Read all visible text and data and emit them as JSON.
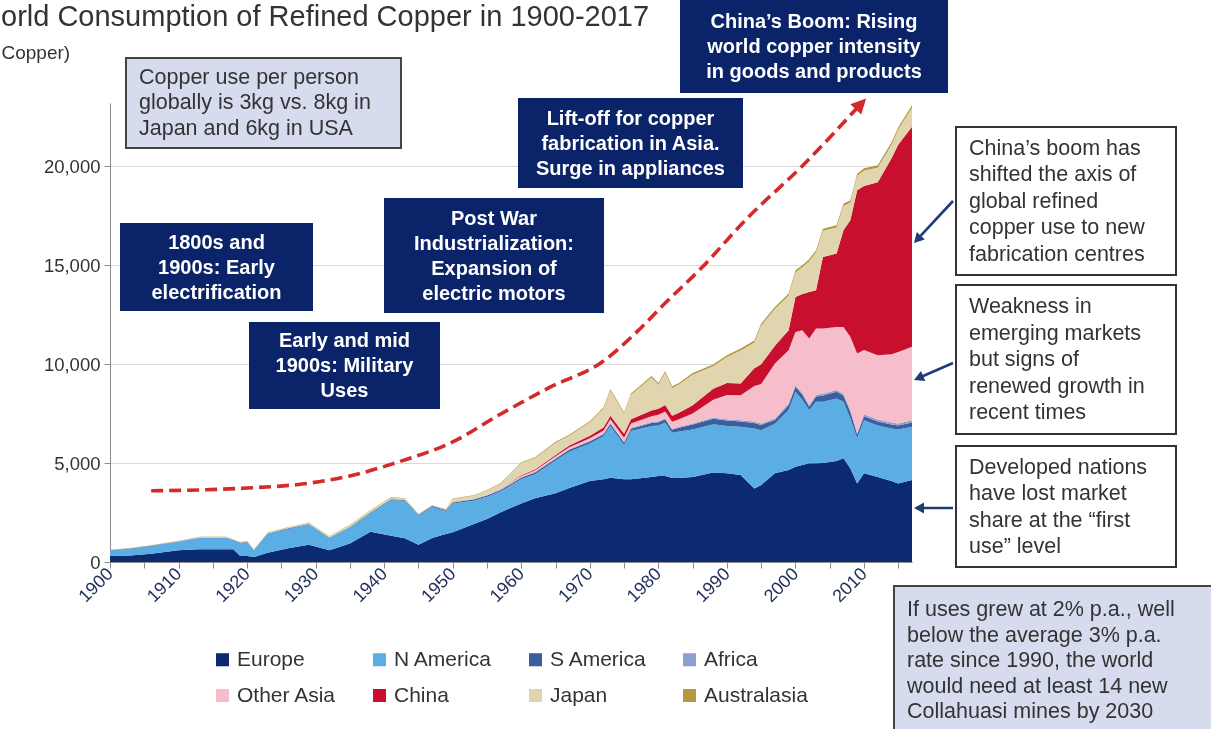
{
  "chart_data": {
    "type": "area",
    "stacked": true,
    "title": "orld Consumption of Refined Copper in 1900-2017",
    "ylabel": "Copper)",
    "x": [
      1900,
      1903,
      1906,
      1910,
      1913,
      1917,
      1918,
      1919,
      1920,
      1921,
      1923,
      1926,
      1929,
      1932,
      1935,
      1938,
      1941,
      1943,
      1945,
      1947,
      1949,
      1950,
      1953,
      1955,
      1957,
      1960,
      1962,
      1965,
      1967,
      1970,
      1972,
      1973,
      1975,
      1976,
      1979,
      1980,
      1981,
      1982,
      1983,
      1985,
      1988,
      1990,
      1992,
      1994,
      1995,
      1997,
      1999,
      2000,
      2001,
      2002,
      2003,
      2004,
      2006,
      2007,
      2008,
      2009,
      2010,
      2012,
      2014,
      2015,
      2017
    ],
    "series": [
      {
        "name": "Europe",
        "color": "#0b2a6f",
        "values": [
          300,
          330,
          420,
          600,
          650,
          650,
          650,
          300,
          300,
          250,
          470,
          690,
          870,
          600,
          940,
          1530,
          1330,
          1200,
          870,
          1210,
          1420,
          1500,
          1910,
          2170,
          2520,
          2960,
          3220,
          3480,
          3740,
          4090,
          4180,
          4260,
          4180,
          4180,
          4300,
          4350,
          4350,
          4250,
          4250,
          4300,
          4520,
          4480,
          4400,
          3720,
          3890,
          4480,
          4650,
          4820,
          4900,
          4990,
          4990,
          5000,
          5100,
          5240,
          4740,
          3970,
          4480,
          4300,
          4100,
          3970,
          4140
        ]
      },
      {
        "name": "N America",
        "color": "#5aaee3",
        "values": [
          270,
          330,
          380,
          420,
          560,
          560,
          440,
          650,
          700,
          330,
          950,
          980,
          1020,
          600,
          800,
          930,
          1800,
          1900,
          1480,
          1570,
          1160,
          1460,
          1190,
          1130,
          1050,
          1220,
          1220,
          1650,
          1830,
          1900,
          2170,
          2610,
          1740,
          2440,
          2570,
          2550,
          2700,
          2280,
          2350,
          2400,
          2440,
          2390,
          2430,
          3030,
          2770,
          2510,
          3030,
          3780,
          3300,
          2690,
          3110,
          3100,
          3170,
          2860,
          2520,
          2280,
          2690,
          2600,
          2650,
          2730,
          2690
        ]
      },
      {
        "name": "S America",
        "color": "#3a5f9d",
        "values": [
          20,
          20,
          20,
          20,
          20,
          20,
          20,
          20,
          20,
          20,
          20,
          30,
          30,
          30,
          30,
          40,
          40,
          40,
          40,
          50,
          50,
          50,
          60,
          60,
          70,
          80,
          80,
          90,
          100,
          100,
          110,
          120,
          120,
          120,
          150,
          160,
          160,
          160,
          180,
          250,
          280,
          280,
          270,
          280,
          270,
          190,
          250,
          260,
          270,
          170,
          270,
          320,
          340,
          320,
          340,
          200,
          200,
          200,
          200,
          200,
          220
        ]
      },
      {
        "name": "Africa",
        "color": "#8c9fd0",
        "values": [
          10,
          10,
          10,
          10,
          10,
          10,
          10,
          10,
          10,
          10,
          10,
          10,
          10,
          10,
          10,
          10,
          10,
          10,
          10,
          10,
          10,
          20,
          20,
          20,
          20,
          30,
          30,
          30,
          30,
          40,
          40,
          40,
          40,
          40,
          50,
          50,
          50,
          50,
          50,
          50,
          60,
          70,
          70,
          70,
          70,
          70,
          80,
          80,
          80,
          80,
          80,
          80,
          80,
          80,
          100,
          100,
          100,
          100,
          100,
          100,
          120
        ]
      },
      {
        "name": "Other Asia",
        "color": "#f6bdcb",
        "values": [
          0,
          0,
          0,
          0,
          0,
          0,
          0,
          0,
          0,
          0,
          0,
          0,
          0,
          0,
          0,
          0,
          0,
          0,
          0,
          0,
          0,
          0,
          10,
          20,
          30,
          60,
          70,
          90,
          100,
          120,
          150,
          180,
          200,
          220,
          300,
          330,
          350,
          350,
          380,
          500,
          900,
          1220,
          1260,
          1790,
          2000,
          2780,
          2690,
          2690,
          3170,
          3370,
          3350,
          3300,
          3190,
          3380,
          3680,
          3990,
          3240,
          3250,
          3450,
          3620,
          3710
        ]
      },
      {
        "name": "China",
        "color": "#c8102e",
        "values": [
          0,
          0,
          0,
          0,
          0,
          0,
          0,
          0,
          0,
          0,
          0,
          0,
          0,
          0,
          0,
          0,
          0,
          0,
          0,
          0,
          0,
          0,
          0,
          0,
          10,
          40,
          50,
          70,
          90,
          130,
          150,
          180,
          200,
          220,
          290,
          300,
          320,
          300,
          330,
          420,
          560,
          610,
          590,
          900,
          1000,
          900,
          1020,
          1770,
          1830,
          2350,
          1940,
          3620,
          3710,
          4890,
          5890,
          8250,
          8290,
          8750,
          9900,
          10480,
          11120
        ]
      },
      {
        "name": "Japan",
        "color": "#e0d5ae",
        "values": [
          10,
          10,
          10,
          10,
          20,
          20,
          20,
          20,
          30,
          20,
          40,
          50,
          60,
          60,
          80,
          100,
          80,
          50,
          10,
          10,
          20,
          160,
          160,
          210,
          260,
          610,
          590,
          620,
          490,
          680,
          960,
          1270,
          1020,
          1230,
          1660,
          1230,
          1650,
          1410,
          1430,
          1550,
          1130,
          1310,
          1670,
          1310,
          1950,
          1860,
          1750,
          1250,
          1350,
          1550,
          1910,
          1320,
          1320,
          1230,
          900,
          730,
          790,
          730,
          680,
          760,
          960
        ]
      },
      {
        "name": "Australasia",
        "color": "#b3983d",
        "values": [
          10,
          10,
          10,
          10,
          10,
          10,
          10,
          10,
          10,
          10,
          10,
          10,
          10,
          10,
          20,
          20,
          20,
          20,
          20,
          20,
          20,
          20,
          30,
          30,
          30,
          40,
          40,
          50,
          50,
          60,
          60,
          70,
          70,
          70,
          80,
          80,
          80,
          80,
          80,
          80,
          90,
          90,
          100,
          100,
          100,
          100,
          100,
          100,
          100,
          100,
          110,
          110,
          110,
          110,
          110,
          110,
          110,
          120,
          120,
          120,
          120
        ]
      },
      {
        "type": "line",
        "color": "#d42a2a",
        "line_style": "dashed",
        "x": [
          1906,
          1913,
          1920,
          1928,
          1935,
          1942,
          1950,
          1957,
          1964,
          1972,
          1977,
          1981,
          1986,
          1993,
          2001,
          2009
        ],
        "values": [
          3600,
          3640,
          3740,
          3940,
          4350,
          5050,
          6070,
          7480,
          8800,
          10160,
          11680,
          13090,
          14760,
          17390,
          20020,
          22950
        ]
      }
    ],
    "xlim": [
      1900,
      2017
    ],
    "xticks": [
      1900,
      {
        "value": 1905,
        "label": null
      },
      1910,
      {
        "value": 1915,
        "label": null
      },
      1920,
      {
        "value": 1925,
        "label": null
      },
      1930,
      {
        "value": 1935,
        "label": null
      },
      1940,
      {
        "value": 1945,
        "label": null
      },
      1950,
      {
        "value": 1955,
        "label": null
      },
      1960,
      {
        "value": 1965,
        "label": null
      },
      1970,
      {
        "value": 1975,
        "label": null
      },
      1980,
      {
        "value": 1985,
        "label": null
      },
      1990,
      {
        "value": 1995,
        "label": null
      },
      2000,
      {
        "value": 2005,
        "label": null
      },
      2010,
      {
        "value": 2015,
        "label": null
      }
    ],
    "ylim": [
      0,
      23200
    ],
    "yticks": [
      0,
      {
        "value": 5000,
        "label": "5,000"
      },
      {
        "value": 10000,
        "label": "10,000"
      },
      {
        "value": 15000,
        "label": "15,000"
      },
      {
        "value": 20000,
        "label": "20,000"
      }
    ],
    "grid": "y",
    "legend": "bottom",
    "annotations": [
      "Copper use per person globally is 3kg vs. 8kg in Japan and 6kg in USA",
      "1800s and 1900s: Early electrification",
      "Early and mid 1900s: Military Uses",
      "Post War Industrialization: Expansion of electric motors",
      "Lift-off for copper fabrication in Asia. Surge in appliances",
      "China’s Boom: Rising world copper intensity in goods and products",
      "China’s boom has shifted the axis of global refined copper use to new fabrication centres",
      "Weakness in emerging markets but signs of renewed growth in recent times",
      "Developed nations have lost market share at the “first use” level",
      "If uses grew at 2% p.a., well below the average 3% p.a. rate since 1990, the world would need at least 14 new Collahuasi mines by 2030"
    ]
  }
}
